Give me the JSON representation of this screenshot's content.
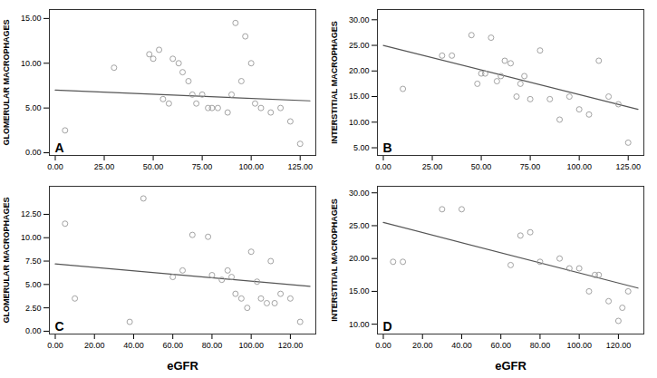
{
  "chart_data": [
    {
      "type": "scatter",
      "ylabel": "GLOMERULAR MACROPHAGES",
      "annotations": [
        "A"
      ],
      "xlim": [
        -3,
        133
      ],
      "ylim": [
        -0.3,
        16
      ],
      "xticks": [
        {
          "value": 0,
          "label": "0.00"
        },
        {
          "value": 25,
          "label": "25.00"
        },
        {
          "value": 50,
          "label": "50.00"
        },
        {
          "value": 75,
          "label": "75.00"
        },
        {
          "value": 100,
          "label": "100.00"
        },
        {
          "value": 125,
          "label": "125.00"
        }
      ],
      "yticks": [
        {
          "value": 0,
          "label": "0.00"
        },
        {
          "value": 5.0,
          "label": "5.00"
        },
        {
          "value": 10.0,
          "label": "10.00"
        },
        {
          "value": 15.0,
          "label": "15.00"
        }
      ],
      "grid": false,
      "series": [
        {
          "type": "scatter",
          "color": "#999999",
          "marker": "open_circle",
          "x": [
            5,
            30,
            48,
            50,
            53,
            55,
            58,
            60,
            63,
            65,
            68,
            70,
            72,
            75,
            78,
            80,
            83,
            88,
            90,
            92,
            95,
            97,
            100,
            102,
            105,
            110,
            115,
            120,
            125
          ],
          "values": [
            2.5,
            9.5,
            11,
            10.5,
            11.5,
            6,
            5.5,
            10.5,
            10,
            9,
            8,
            6.5,
            5.5,
            6.5,
            5,
            5,
            5,
            4.5,
            6.5,
            14.5,
            8,
            13,
            10,
            5.5,
            5,
            4.5,
            5,
            3.5,
            1
          ]
        },
        {
          "type": "line",
          "color": "#555555",
          "line_style": "solid",
          "x": [
            0,
            130
          ],
          "values": [
            7.0,
            5.8
          ]
        }
      ]
    },
    {
      "type": "scatter",
      "ylabel": "INTERSTITIAL MACROPHAGES",
      "annotations": [
        "B"
      ],
      "xlim": [
        -3,
        133
      ],
      "ylim": [
        3.5,
        32
      ],
      "xticks": [
        {
          "value": 0,
          "label": "0.00"
        },
        {
          "value": 25,
          "label": "25.00"
        },
        {
          "value": 50,
          "label": "50.00"
        },
        {
          "value": 75,
          "label": "75.00"
        },
        {
          "value": 100,
          "label": "100.00"
        },
        {
          "value": 125,
          "label": "125.00"
        }
      ],
      "yticks": [
        {
          "value": 5.0,
          "label": "5.00"
        },
        {
          "value": 10.0,
          "label": "10.00"
        },
        {
          "value": 15.0,
          "label": "15.00"
        },
        {
          "value": 20.0,
          "label": "20.00"
        },
        {
          "value": 25.0,
          "label": "25.00"
        },
        {
          "value": 30.0,
          "label": "30.00"
        }
      ],
      "grid": false,
      "series": [
        {
          "type": "scatter",
          "color": "#999999",
          "marker": "open_circle",
          "x": [
            10,
            30,
            35,
            45,
            48,
            50,
            52,
            55,
            58,
            60,
            62,
            65,
            68,
            70,
            72,
            75,
            80,
            85,
            90,
            95,
            100,
            105,
            110,
            115,
            120,
            125
          ],
          "values": [
            16.5,
            23,
            23,
            27,
            17.5,
            19.5,
            19.5,
            26.5,
            18,
            19,
            22,
            21.5,
            15,
            17.5,
            19,
            14.5,
            24,
            14.5,
            10.5,
            15,
            12.5,
            11.5,
            22,
            15,
            13.5,
            6
          ]
        },
        {
          "type": "line",
          "color": "#555555",
          "line_style": "solid",
          "x": [
            0,
            130
          ],
          "values": [
            25.0,
            12.5
          ]
        }
      ]
    },
    {
      "type": "scatter",
      "xlabel": "eGFR",
      "ylabel": "GLOMERULAR MACROPHAGES",
      "annotations": [
        "C"
      ],
      "xlim": [
        -3,
        133
      ],
      "ylim": [
        -0.3,
        15.5
      ],
      "xticks": [
        {
          "value": 0,
          "label": "0.00"
        },
        {
          "value": 20,
          "label": "20.00"
        },
        {
          "value": 40,
          "label": "40.00"
        },
        {
          "value": 60,
          "label": "60.00"
        },
        {
          "value": 80,
          "label": "80.00"
        },
        {
          "value": 100,
          "label": "100.00"
        },
        {
          "value": 120,
          "label": "120.00"
        }
      ],
      "yticks": [
        {
          "value": 0,
          "label": "0.00"
        },
        {
          "value": 2.5,
          "label": "2.50"
        },
        {
          "value": 5.0,
          "label": "5.00"
        },
        {
          "value": 7.5,
          "label": "7.50"
        },
        {
          "value": 10.0,
          "label": "10.00"
        },
        {
          "value": 12.5,
          "label": "12.50"
        }
      ],
      "grid": false,
      "series": [
        {
          "type": "scatter",
          "color": "#999999",
          "marker": "open_circle",
          "x": [
            5,
            10,
            38,
            45,
            60,
            65,
            70,
            78,
            80,
            85,
            88,
            90,
            92,
            95,
            98,
            100,
            103,
            105,
            108,
            110,
            112,
            115,
            120,
            125
          ],
          "values": [
            11.5,
            3.5,
            1.0,
            14.2,
            5.8,
            6.5,
            10.3,
            10.1,
            6.0,
            5.5,
            6.5,
            5.8,
            4.0,
            3.5,
            2.5,
            8.5,
            5.3,
            3.5,
            3.0,
            7.5,
            3.0,
            4.0,
            3.5,
            1.0
          ]
        },
        {
          "type": "line",
          "color": "#555555",
          "line_style": "solid",
          "x": [
            0,
            130
          ],
          "values": [
            7.2,
            4.8
          ]
        }
      ]
    },
    {
      "type": "scatter",
      "xlabel": "eGFR",
      "ylabel": "INTERSTITIAL MACROPHAGES",
      "annotations": [
        "D"
      ],
      "xlim": [
        -3,
        133
      ],
      "ylim": [
        8.5,
        31
      ],
      "xticks": [
        {
          "value": 0,
          "label": "0.00"
        },
        {
          "value": 20,
          "label": "20.00"
        },
        {
          "value": 40,
          "label": "40.00"
        },
        {
          "value": 60,
          "label": "60.00"
        },
        {
          "value": 80,
          "label": "80.00"
        },
        {
          "value": 100,
          "label": "100.00"
        },
        {
          "value": 120,
          "label": "120.00"
        }
      ],
      "yticks": [
        {
          "value": 10.0,
          "label": "10.00"
        },
        {
          "value": 15.0,
          "label": "15.00"
        },
        {
          "value": 20.0,
          "label": "20.00"
        },
        {
          "value": 25.0,
          "label": "25.00"
        },
        {
          "value": 30.0,
          "label": "30.00"
        }
      ],
      "grid": false,
      "series": [
        {
          "type": "scatter",
          "color": "#999999",
          "marker": "open_circle",
          "x": [
            5,
            10,
            30,
            40,
            65,
            70,
            75,
            80,
            90,
            95,
            100,
            105,
            108,
            110,
            115,
            120,
            122,
            125
          ],
          "values": [
            19.5,
            19.5,
            27.5,
            27.5,
            19.0,
            23.5,
            24.0,
            19.5,
            20.0,
            18.5,
            18.5,
            15.0,
            17.5,
            17.5,
            13.5,
            10.5,
            12.5,
            15.0
          ]
        },
        {
          "type": "line",
          "color": "#555555",
          "line_style": "solid",
          "x": [
            0,
            130
          ],
          "values": [
            25.5,
            15.5
          ]
        }
      ]
    }
  ]
}
